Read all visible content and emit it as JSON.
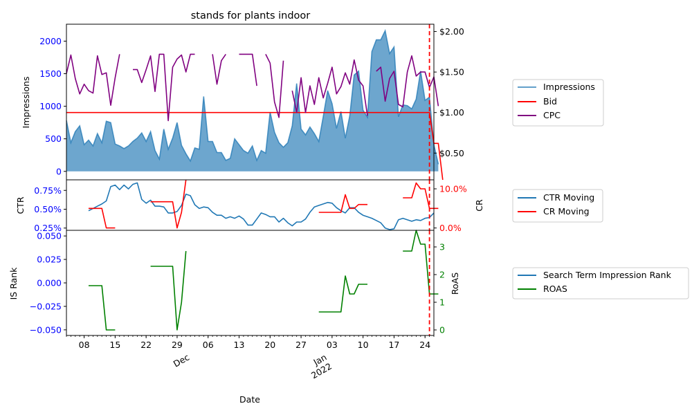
{
  "colors": {
    "impressions": "#1f77b4",
    "bid": "#ff0000",
    "cpc": "#800080",
    "ctr": "#1f77b4",
    "cr": "#ff0000",
    "istr": "#1f77b4",
    "roas": "#008000",
    "axis_blue": "#0000ff",
    "axis_red": "#ff0000",
    "axis_green": "#008000"
  },
  "chart_data": [
    {
      "type": "area",
      "title": "stands for plants indoor",
      "ylabel": "Impressions",
      "ylim": [
        -130,
        2260
      ],
      "y_ticks": [
        0,
        500,
        1000,
        1500,
        2000
      ],
      "y_tick_labels": [
        "0",
        "500",
        "1000",
        "1500",
        "2000"
      ],
      "y2lim": [
        0.17,
        2.09
      ],
      "y2_ticks": [
        0.5,
        1.0,
        1.5,
        2.0
      ],
      "y2_tick_labels": [
        "$0.50",
        "$1.00",
        "$1.50",
        "$2.00"
      ],
      "x_start": "2021-11-04",
      "x_end": "2022-01-26",
      "legend": [
        {
          "label": "Impressions",
          "kind": "area"
        },
        {
          "label": "Bid",
          "kind": "line"
        },
        {
          "label": "CPC",
          "kind": "line"
        }
      ],
      "legend_position": "outside-right",
      "series": [
        {
          "name": "Impressions",
          "axis": "left",
          "values": [
            780,
            440,
            610,
            700,
            410,
            480,
            390,
            580,
            440,
            770,
            750,
            420,
            390,
            350,
            390,
            460,
            510,
            590,
            460,
            610,
            320,
            190,
            650,
            340,
            510,
            750,
            400,
            270,
            160,
            360,
            340,
            1150,
            460,
            460,
            290,
            290,
            170,
            200,
            500,
            410,
            320,
            280,
            390,
            170,
            320,
            280,
            910,
            600,
            440,
            370,
            440,
            700,
            1350,
            650,
            560,
            680,
            580,
            460,
            840,
            1240,
            1040,
            660,
            920,
            510,
            850,
            1480,
            1540,
            940,
            830,
            1840,
            2020,
            2020,
            2160,
            1810,
            1910,
            840,
            1020,
            1010,
            960,
            1110,
            1540,
            1090,
            1140,
            410,
            110
          ]
        },
        {
          "name": "Bid",
          "axis": "right",
          "values": [
            1.0,
            1.0,
            1.0,
            1.0,
            1.0,
            1.0,
            1.0,
            1.0,
            1.0,
            1.0,
            1.0,
            1.0,
            1.0,
            1.0,
            1.0,
            1.0,
            1.0,
            1.0,
            1.0,
            1.0,
            1.0,
            1.0,
            1.0,
            1.0,
            1.0,
            1.0,
            1.0,
            1.0,
            1.0,
            1.0,
            1.0,
            1.0,
            1.0,
            1.0,
            1.0,
            1.0,
            1.0,
            1.0,
            1.0,
            1.0,
            1.0,
            1.0,
            1.0,
            1.0,
            1.0,
            1.0,
            1.0,
            1.0,
            1.0,
            1.0,
            1.0,
            1.0,
            1.0,
            1.0,
            1.0,
            1.0,
            1.0,
            1.0,
            1.0,
            1.0,
            1.0,
            1.0,
            1.0,
            1.0,
            1.0,
            1.0,
            1.0,
            1.0,
            1.0,
            1.0,
            1.0,
            1.0,
            1.0,
            1.0,
            1.0,
            1.0,
            1.0,
            1.0,
            1.0,
            1.0,
            1.0,
            1.0,
            1.0,
            0.62,
            0.62,
            0.17
          ]
        },
        {
          "name": "CPC",
          "axis": "right",
          "values": [
            1.48,
            1.71,
            1.42,
            1.23,
            1.35,
            1.27,
            1.24,
            1.7,
            1.47,
            1.49,
            1.09,
            1.43,
            1.72,
            null,
            null,
            1.53,
            1.53,
            1.37,
            1.53,
            1.7,
            1.26,
            1.72,
            1.72,
            0.9,
            1.56,
            1.66,
            1.71,
            1.5,
            1.72,
            1.72,
            null,
            null,
            null,
            1.72,
            1.35,
            1.64,
            1.72,
            null,
            null,
            1.72,
            1.72,
            1.72,
            1.72,
            1.33,
            null,
            1.72,
            1.61,
            1.13,
            0.94,
            1.64,
            null,
            1.27,
            1.0,
            1.43,
            1.0,
            1.33,
            1.1,
            1.43,
            1.18,
            1.36,
            1.56,
            1.23,
            1.32,
            1.49,
            1.35,
            1.65,
            1.4,
            1.33,
            0.96,
            null,
            1.51,
            1.56,
            1.14,
            1.42,
            1.51,
            1.1,
            1.07,
            1.5,
            1.7,
            1.45,
            1.5,
            1.5,
            1.31,
            1.44,
            1.08
          ]
        }
      ]
    },
    {
      "type": "line",
      "ylabel": "CTR",
      "y2label": "CR",
      "ylim": [
        0.22,
        0.89
      ],
      "y_ticks": [
        0.25,
        0.5,
        0.75
      ],
      "y_tick_labels": [
        "0.25%",
        "0.50%",
        "0.75%"
      ],
      "y2lim": [
        -0.6,
        12.3
      ],
      "y2_ticks": [
        0.0,
        10.0
      ],
      "y2_tick_labels": [
        "0.0%",
        "10.0%"
      ],
      "legend": [
        {
          "label": "CTR Moving",
          "kind": "line"
        },
        {
          "label": "CR Moving",
          "kind": "line"
        }
      ],
      "legend_position": "outside-right",
      "series": [
        {
          "name": "CTR Moving",
          "axis": "left",
          "values": [
            null,
            null,
            null,
            null,
            null,
            0.48,
            0.51,
            0.54,
            0.57,
            0.61,
            0.8,
            0.82,
            0.76,
            0.82,
            0.77,
            0.83,
            0.85,
            0.63,
            0.58,
            0.62,
            0.54,
            0.54,
            0.53,
            0.45,
            0.45,
            0.47,
            0.55,
            0.7,
            0.68,
            0.56,
            0.51,
            0.53,
            0.52,
            0.46,
            0.42,
            0.42,
            0.38,
            0.4,
            0.38,
            0.41,
            0.37,
            0.29,
            0.29,
            0.37,
            0.45,
            0.43,
            0.4,
            0.4,
            0.33,
            0.38,
            0.32,
            0.28,
            0.33,
            0.33,
            0.37,
            0.46,
            0.53,
            0.55,
            0.57,
            0.59,
            0.58,
            0.52,
            0.48,
            0.45,
            0.52,
            0.52,
            0.46,
            0.42,
            0.4,
            0.38,
            0.35,
            0.32,
            0.25,
            0.23,
            0.24,
            0.36,
            0.38,
            0.36,
            0.34,
            0.36,
            0.35,
            0.38,
            0.39,
            0.45,
            null
          ]
        },
        {
          "name": "CR Moving",
          "axis": "right",
          "values": [
            null,
            null,
            null,
            null,
            null,
            5.0,
            5.0,
            5.0,
            5.0,
            0.0,
            0.0,
            0.0,
            null,
            null,
            null,
            null,
            null,
            null,
            null,
            6.7,
            6.7,
            6.7,
            6.7,
            6.7,
            6.7,
            0.0,
            4.0,
            12.3,
            null,
            null,
            null,
            null,
            null,
            null,
            null,
            null,
            null,
            null,
            null,
            null,
            null,
            null,
            null,
            null,
            null,
            null,
            null,
            null,
            null,
            null,
            null,
            null,
            null,
            null,
            null,
            null,
            null,
            4.0,
            4.0,
            4.0,
            4.0,
            4.0,
            4.0,
            8.5,
            5.0,
            5.0,
            6.0,
            6.0,
            6.0,
            null,
            null,
            null,
            null,
            null,
            null,
            null,
            7.7,
            7.7,
            7.7,
            11.5,
            10.0,
            10.0,
            5.0,
            5.0,
            5.0
          ]
        }
      ]
    },
    {
      "type": "line",
      "ylabel": "IS Rank",
      "y2label": "RoAS",
      "xlabel": "Date",
      "ylim": [
        -0.056,
        0.056
      ],
      "y_ticks": [
        -0.05,
        -0.025,
        0.0,
        0.025,
        0.05
      ],
      "y_tick_labels": [
        "−0.050",
        "−0.025",
        "0.000",
        "0.025",
        "0.050"
      ],
      "y2lim": [
        -0.2,
        3.6
      ],
      "y2_ticks": [
        0,
        1,
        2,
        3
      ],
      "y2_tick_labels": [
        "0",
        "1",
        "2",
        "3"
      ],
      "x_ticks": [
        "2021-11-08",
        "2021-11-15",
        "2021-11-22",
        "2021-11-29",
        "2021-12-06",
        "2021-12-13",
        "2021-12-20",
        "2021-12-27",
        "2022-01-03",
        "2022-01-10",
        "2022-01-17",
        "2022-01-24"
      ],
      "x_tick_labels": [
        "08",
        "15",
        "22",
        "29",
        "06",
        "13",
        "20",
        "27",
        "03",
        "10",
        "17",
        "24"
      ],
      "x_month_ticks": [
        "2021-12-01",
        "2022-01-01"
      ],
      "x_month_labels": [
        "Dec",
        "Jan\n2022"
      ],
      "legend": [
        {
          "label": "Search Term Impression Rank",
          "kind": "line"
        },
        {
          "label": "ROAS",
          "kind": "line"
        }
      ],
      "legend_position": "outside-right",
      "series": [
        {
          "name": "Search Term Impression Rank",
          "axis": "left",
          "values": []
        },
        {
          "name": "ROAS",
          "axis": "right",
          "values": [
            null,
            null,
            null,
            null,
            null,
            1.6,
            1.6,
            1.6,
            1.6,
            0.0,
            0.0,
            0.0,
            null,
            null,
            null,
            null,
            null,
            null,
            null,
            2.3,
            2.3,
            2.3,
            2.3,
            2.3,
            2.3,
            0.0,
            1.0,
            2.85,
            null,
            null,
            null,
            null,
            null,
            null,
            null,
            null,
            null,
            null,
            null,
            null,
            null,
            null,
            null,
            null,
            null,
            null,
            null,
            null,
            null,
            null,
            null,
            null,
            null,
            null,
            null,
            null,
            null,
            0.65,
            0.65,
            0.65,
            0.65,
            0.65,
            0.65,
            1.95,
            1.3,
            1.3,
            1.65,
            1.65,
            1.65,
            null,
            null,
            null,
            null,
            null,
            null,
            null,
            2.85,
            2.85,
            2.85,
            3.6,
            3.1,
            3.1,
            1.3,
            1.3,
            1.3
          ]
        }
      ],
      "vline_date": "2022-01-25"
    }
  ]
}
